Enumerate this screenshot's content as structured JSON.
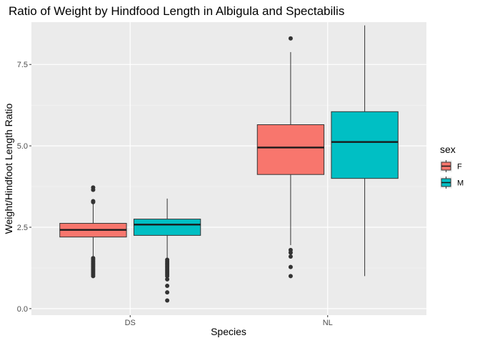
{
  "chart_data": {
    "type": "boxplot",
    "title": "Ratio of Weight by Hindfood Length in Albigula and Spectabilis",
    "xlabel": "Species",
    "ylabel": "Weight/Hindfoot Length Ratio",
    "categories": [
      "DS",
      "NL"
    ],
    "ylim": [
      -0.2,
      8.8
    ],
    "yticks": [
      0.0,
      2.5,
      5.0,
      7.5
    ],
    "ytick_labels": [
      "0.0",
      "2.5",
      "5.0",
      "7.5"
    ],
    "grid": true,
    "legend": {
      "title": "sex",
      "position": "right"
    },
    "series": [
      {
        "name": "F",
        "color": "#F8766D",
        "boxes": [
          {
            "category": "DS",
            "min": 1.55,
            "q1": 2.2,
            "median": 2.42,
            "q3": 2.62,
            "max": 3.25,
            "outliers": [
              3.72,
              3.65,
              3.3,
              3.27,
              1.55,
              1.5,
              1.45,
              1.4,
              1.35,
              1.3,
              1.25,
              1.2,
              1.15,
              1.1,
              1.05,
              1.0
            ]
          },
          {
            "category": "NL",
            "min": 1.95,
            "q1": 4.12,
            "median": 4.95,
            "q3": 5.65,
            "max": 7.88,
            "outliers": [
              8.3,
              1.8,
              1.72,
              1.6,
              1.28,
              1.0
            ]
          }
        ]
      },
      {
        "name": "M",
        "color": "#00BFC4",
        "boxes": [
          {
            "category": "DS",
            "min": 1.5,
            "q1": 2.25,
            "median": 2.58,
            "q3": 2.75,
            "max": 3.38,
            "outliers": [
              1.5,
              1.45,
              1.4,
              1.35,
              1.3,
              1.25,
              1.2,
              1.15,
              1.1,
              1.05,
              1.0,
              0.9,
              0.7,
              0.5,
              0.25
            ]
          },
          {
            "category": "NL",
            "min": 1.0,
            "q1": 4.0,
            "median": 5.12,
            "q3": 6.05,
            "max": 8.7,
            "outliers": []
          }
        ]
      }
    ]
  }
}
